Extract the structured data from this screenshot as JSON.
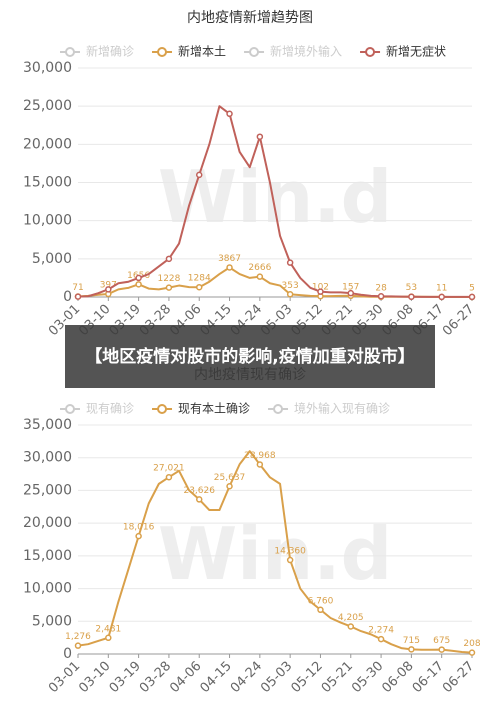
{
  "banner": "【地区疫情对股市的影响,疫情加重对股市】",
  "chart_data": [
    {
      "type": "line",
      "title": "内地疫情新增趋势图",
      "watermark": "Win.d",
      "categories": [
        "03-01",
        null,
        null,
        "03-10",
        null,
        null,
        "03-19",
        null,
        null,
        "03-28",
        null,
        null,
        "04-06",
        null,
        null,
        "04-15",
        null,
        null,
        "04-24",
        null,
        null,
        "05-03",
        null,
        null,
        "05-12",
        null,
        null,
        "05-21",
        null,
        null,
        "05-30",
        null,
        null,
        "06-08",
        null,
        null,
        "06-17",
        null,
        null,
        "06-27"
      ],
      "series": [
        {
          "name": "新增确诊",
          "color": "#cccccc",
          "hidden": true
        },
        {
          "name": "新增本土",
          "color": "#d9a04a",
          "data_labels": true,
          "values": [
            71,
            150,
            300,
            397,
            1000,
            1200,
            1656,
            1100,
            1000,
            1228,
            1500,
            1300,
            1284,
            2000,
            3000,
            3867,
            3000,
            2500,
            2666,
            1800,
            1500,
            353,
            250,
            150,
            102,
            120,
            140,
            157,
            80,
            40,
            28,
            30,
            40,
            53,
            30,
            15,
            11,
            8,
            6,
            5
          ]
        },
        {
          "name": "新增境外输入",
          "color": "#cccccc",
          "hidden": true
        },
        {
          "name": "新增无症状",
          "color": "#c0615a",
          "values": [
            50,
            100,
            500,
            1000,
            1800,
            2000,
            2500,
            3000,
            4000,
            5000,
            7000,
            12000,
            16000,
            20000,
            25000,
            24000,
            19000,
            17000,
            21000,
            15000,
            8000,
            4500,
            2500,
            1200,
            700,
            600,
            600,
            500,
            300,
            150,
            100,
            80,
            50,
            30,
            20,
            20,
            10,
            10,
            20,
            10
          ]
        }
      ],
      "ylim": [
        0,
        30000
      ],
      "yticks": [
        0,
        {
          "value": 5000,
          "label": "5,000"
        },
        {
          "value": 10000,
          "label": "10,000"
        },
        {
          "value": 15000,
          "label": "15,000"
        },
        {
          "value": 20000,
          "label": "20,000"
        },
        {
          "value": 25000,
          "label": "25,000"
        },
        {
          "value": 30000,
          "label": "30,000"
        }
      ],
      "grid": true
    },
    {
      "type": "line",
      "title": "内地疫情现有确诊",
      "watermark": "Win.d",
      "categories": [
        "03-01",
        null,
        null,
        "03-10",
        null,
        null,
        "03-19",
        null,
        null,
        "03-28",
        null,
        null,
        "04-06",
        null,
        null,
        "04-15",
        null,
        null,
        "04-24",
        null,
        null,
        "05-03",
        null,
        null,
        "05-12",
        null,
        null,
        "05-21",
        null,
        null,
        "05-30",
        null,
        null,
        "06-08",
        null,
        null,
        "06-17",
        null,
        null,
        "06-27"
      ],
      "series": [
        {
          "name": "现有确诊",
          "color": "#cccccc",
          "hidden": true
        },
        {
          "name": "现有本土确诊",
          "color": "#d9a04a",
          "data_labels": true,
          "values": [
            1276,
            1500,
            2000,
            2481,
            8000,
            13000,
            18016,
            23000,
            26000,
            27021,
            28000,
            25000,
            23626,
            22000,
            22000,
            25637,
            29000,
            31000,
            28968,
            27000,
            26000,
            14360,
            10000,
            8000,
            6760,
            5500,
            4800,
            4205,
            3500,
            3000,
            2274,
            1500,
            900,
            715,
            650,
            650,
            675,
            500,
            300,
            208
          ],
          "value_labels": [
            "1,276",
            null,
            null,
            "2,481",
            null,
            null,
            "18,016",
            null,
            null,
            "27,021",
            null,
            null,
            "23,626",
            null,
            null,
            "25,637",
            null,
            null,
            "28,968",
            null,
            null,
            "14,360",
            null,
            null,
            "6,760",
            null,
            null,
            "4,205",
            null,
            null,
            "2,274",
            null,
            null,
            "715",
            null,
            null,
            "675",
            null,
            null,
            "208"
          ]
        },
        {
          "name": "境外输入现有确诊",
          "color": "#cccccc",
          "hidden": true
        }
      ],
      "ylim": [
        0,
        35000
      ],
      "yticks": [
        0,
        {
          "value": 5000,
          "label": "5,000"
        },
        {
          "value": 10000,
          "label": "10,000"
        },
        {
          "value": 15000,
          "label": "15,000"
        },
        {
          "value": 20000,
          "label": "20,000"
        },
        {
          "value": 25000,
          "label": "25,000"
        },
        {
          "value": 30000,
          "label": "30,000"
        },
        {
          "value": 35000,
          "label": "35,000"
        }
      ],
      "grid": true
    }
  ]
}
